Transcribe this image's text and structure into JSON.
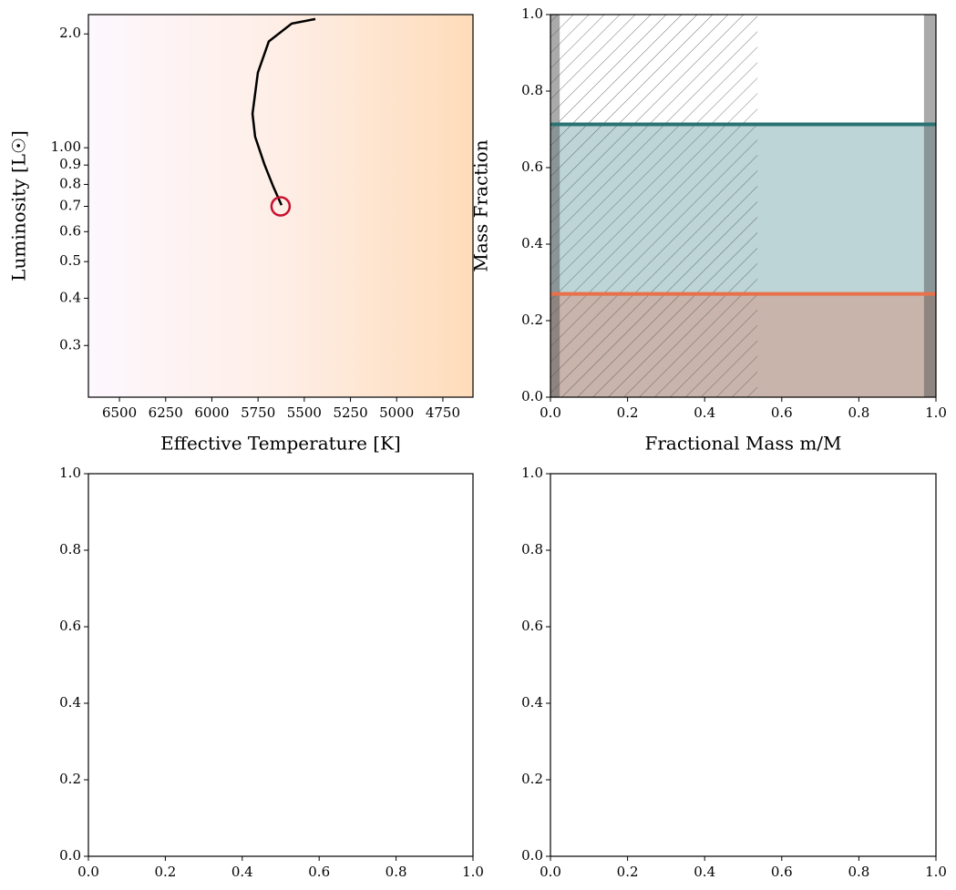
{
  "chart_data": [
    {
      "type": "line",
      "xlabel": "Effective Temperature [K]",
      "ylabel": "Luminosity [L☉]",
      "xlim": [
        6668,
        4587
      ],
      "ylim": [
        0.219,
        2.25
      ],
      "yscale": "log",
      "xticks": [
        6500,
        6250,
        6000,
        5750,
        5500,
        5250,
        5000,
        4750
      ],
      "yticks": [
        0.3,
        0.4,
        0.5,
        0.6,
        0.7,
        0.8,
        0.9,
        {
          "value": 1,
          "label": "1.00"
        },
        {
          "value": 2,
          "label": "2.0"
        }
      ],
      "series": [
        {
          "color": "#000000",
          "x": [
            5440,
            5568,
            5692,
            5751,
            5780,
            5766,
            5716,
            5667,
            5623
          ],
          "values": [
            2.19,
            2.13,
            1.91,
            1.58,
            1.23,
            1.07,
            0.905,
            0.788,
            0.705
          ]
        }
      ],
      "marker": {
        "x": 5628,
        "y": 0.7,
        "color": "#c8102e"
      }
    },
    {
      "type": "area",
      "xlabel": "Fractional Mass m/M",
      "ylabel": "Mass Fraction",
      "xlim": [
        0,
        1
      ],
      "ylim": [
        0,
        1
      ],
      "xticks": [
        {
          "value": 0,
          "label": "0.0"
        },
        0.2,
        0.4,
        0.6,
        0.8,
        {
          "value": 1,
          "label": "1.0"
        }
      ],
      "yticks": [
        {
          "value": 0,
          "label": "0.0"
        },
        0.2,
        0.4,
        0.6,
        0.8,
        {
          "value": 1,
          "label": "1.0"
        }
      ],
      "hlines": [
        {
          "y": 0.27,
          "color": "#e8704a",
          "fill_color": "#c8b4ab"
        },
        {
          "y": 0.713,
          "color": "#2a7372",
          "fill_color": "#bdd5d7"
        }
      ],
      "hatch_span": [
        0,
        0.537
      ],
      "shaded_spans": [
        [
          0,
          0.024
        ],
        [
          0.969,
          1
        ]
      ]
    },
    {
      "type": "line",
      "xlim": [
        0,
        1
      ],
      "ylim": [
        0,
        1
      ],
      "xticks": [
        {
          "value": 0,
          "label": "0.0"
        },
        0.2,
        0.4,
        0.6,
        0.8,
        {
          "value": 1,
          "label": "1.0"
        }
      ],
      "yticks": [
        {
          "value": 0,
          "label": "0.0"
        },
        0.2,
        0.4,
        0.6,
        0.8,
        {
          "value": 1,
          "label": "1.0"
        }
      ]
    },
    {
      "type": "line",
      "xlim": [
        0,
        1
      ],
      "ylim": [
        0,
        1
      ],
      "xticks": [
        {
          "value": 0,
          "label": "0.0"
        },
        0.2,
        0.4,
        0.6,
        0.8,
        {
          "value": 1,
          "label": "1.0"
        }
      ],
      "yticks": [
        {
          "value": 0,
          "label": "0.0"
        },
        0.2,
        0.4,
        0.6,
        0.8,
        {
          "value": 1,
          "label": "1.0"
        }
      ]
    }
  ]
}
